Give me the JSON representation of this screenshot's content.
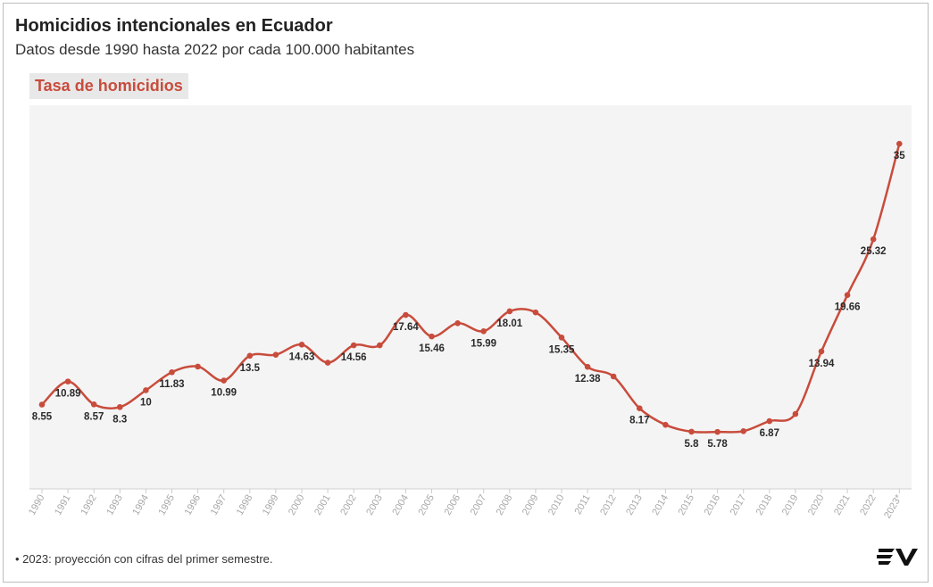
{
  "header": {
    "title": "Homicidios intencionales en Ecuador",
    "subtitle": "Datos desde 1990 hasta 2022 por cada 100.000 habitantes"
  },
  "footnote": "• 2023: proyección con cifras del primer semestre.",
  "logo_icon": "ecuavisa-ev-logo",
  "chart_data": {
    "type": "line",
    "title": "Homicidios intencionales en Ecuador",
    "subtitle": "Datos desde 1990 hasta 2022 por cada 100.000 habitantes",
    "xlabel": "",
    "ylabel": "",
    "categories": [
      "1990",
      "1991",
      "1992",
      "1993",
      "1994",
      "1995",
      "1996",
      "1997",
      "1998",
      "1999",
      "2000",
      "2001",
      "2002",
      "2003",
      "2004",
      "2005",
      "2006",
      "2007",
      "2008",
      "2009",
      "2010",
      "2011",
      "2012",
      "2013",
      "2014",
      "2015",
      "2016",
      "2017",
      "2018",
      "2019",
      "2020",
      "2021",
      "2022",
      "2023*"
    ],
    "series": [
      {
        "name": "Tasa de homicidios",
        "color": "#c84c3c",
        "values": [
          8.55,
          10.89,
          8.57,
          8.3,
          10,
          11.83,
          12.4,
          10.99,
          13.5,
          13.6,
          14.63,
          12.8,
          14.56,
          14.56,
          17.64,
          15.46,
          16.8,
          15.99,
          18.01,
          17.9,
          15.35,
          12.38,
          11.4,
          8.17,
          6.5,
          5.8,
          5.78,
          5.85,
          6.87,
          7.6,
          13.94,
          19.66,
          25.32,
          35
        ],
        "labels": [
          "8.55",
          "10.89",
          "8.57",
          "8.3",
          "10",
          "11.83",
          "",
          "10.99",
          "13.5",
          "",
          "14.63",
          "",
          "14.56",
          "",
          "17.64",
          "15.46",
          "",
          "15.99",
          "18.01",
          "",
          "15.35",
          "12.38",
          "",
          "8.17",
          "",
          "5.8",
          "5.78",
          "",
          "6.87",
          "",
          "13.94",
          "19.66",
          "25.32",
          "35"
        ]
      }
    ],
    "ylim": [
      0,
      38
    ],
    "grid": false,
    "background": "#f4f4f4"
  }
}
